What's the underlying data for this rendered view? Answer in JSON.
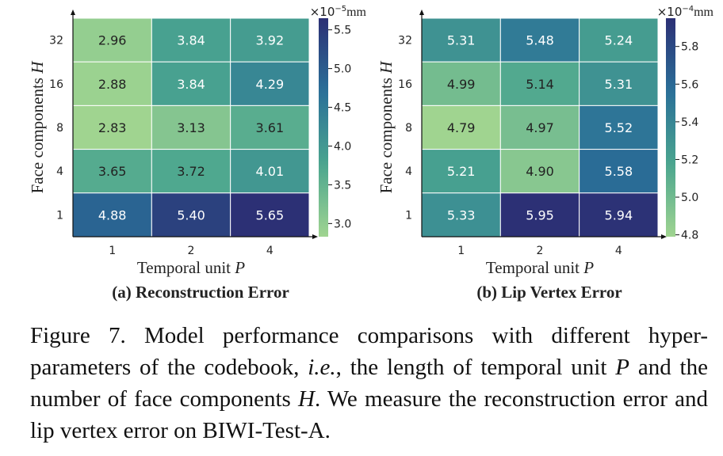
{
  "chart_data": [
    {
      "type": "heatmap",
      "panel_label": "(a) Reconstruction Error",
      "xlabel_text": "Temporal unit ",
      "xlabel_var": "P",
      "ylabel_text": "Face components ",
      "ylabel_var": "H",
      "x_categories": [
        "1",
        "2",
        "4"
      ],
      "y_categories": [
        "32",
        "16",
        "8",
        "4",
        "1"
      ],
      "values": [
        [
          2.96,
          3.84,
          3.92
        ],
        [
          2.88,
          3.84,
          4.29
        ],
        [
          2.83,
          3.13,
          3.61
        ],
        [
          3.65,
          3.72,
          4.01
        ],
        [
          4.88,
          5.4,
          5.65
        ]
      ],
      "labels": [
        [
          "2.96",
          "3.84",
          "3.92"
        ],
        [
          "2.88",
          "3.84",
          "4.29"
        ],
        [
          "2.83",
          "3.13",
          "3.61"
        ],
        [
          "3.65",
          "3.72",
          "4.01"
        ],
        [
          "4.88",
          "5.40",
          "5.65"
        ]
      ],
      "colorbar": {
        "range": [
          2.83,
          5.65
        ],
        "ticks": [
          3.0,
          3.5,
          4.0,
          4.5,
          5.0,
          5.5
        ],
        "tick_labels": [
          "3.0",
          "3.5",
          "4.0",
          "4.5",
          "5.0",
          "5.5"
        ],
        "scale_text": "×10",
        "scale_exp": "−5",
        "unit": "mm"
      }
    },
    {
      "type": "heatmap",
      "panel_label": "(b) Lip Vertex Error",
      "xlabel_text": "Temporal unit ",
      "xlabel_var": "P",
      "ylabel_text": "Face components ",
      "ylabel_var": "H",
      "x_categories": [
        "1",
        "2",
        "4"
      ],
      "y_categories": [
        "32",
        "16",
        "8",
        "4",
        "1"
      ],
      "values": [
        [
          5.31,
          5.48,
          5.24
        ],
        [
          4.99,
          5.14,
          5.31
        ],
        [
          4.79,
          4.97,
          5.52
        ],
        [
          5.21,
          4.9,
          5.58
        ],
        [
          5.33,
          5.95,
          5.94
        ]
      ],
      "labels": [
        [
          "5.31",
          "5.48",
          "5.24"
        ],
        [
          "4.99",
          "5.14",
          "5.31"
        ],
        [
          "4.79",
          "4.97",
          "5.52"
        ],
        [
          "5.21",
          "4.90",
          "5.58"
        ],
        [
          "5.33",
          "5.95",
          "5.94"
        ]
      ],
      "colorbar": {
        "range": [
          4.79,
          5.95
        ],
        "ticks": [
          4.8,
          5.0,
          5.2,
          5.4,
          5.6,
          5.8
        ],
        "tick_labels": [
          "4.8",
          "5.0",
          "5.2",
          "5.4",
          "5.6",
          "5.8"
        ],
        "scale_text": "×10",
        "scale_exp": "−4",
        "unit": "mm"
      }
    }
  ],
  "colormap": [
    "#a0d490",
    "#4aa58f",
    "#2a6f98",
    "#2c3075"
  ],
  "caption": {
    "prefix": "Figure 7.  Model performance comparisons with different hyper-parameters of the codebook, ",
    "ie": "i.e.",
    "mid1": ", the length of temporal unit ",
    "var_p": "P",
    "mid2": " and the number of face components ",
    "var_h": "H",
    "suffix": ". We measure the reconstruction error and lip vertex error on BIWI-Test-A."
  }
}
